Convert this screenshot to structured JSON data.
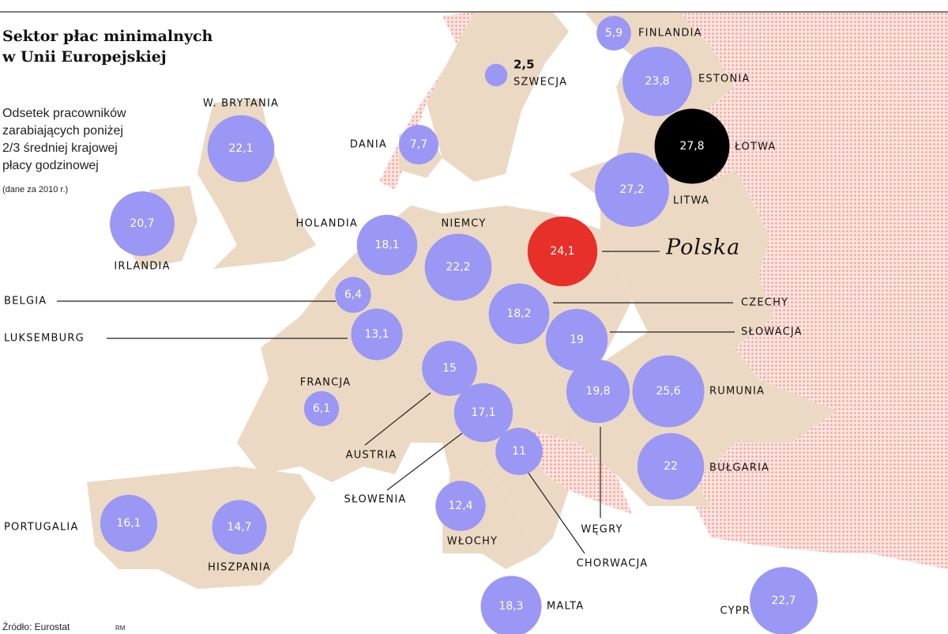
{
  "title": [
    "Sektor płac minimalnych",
    "w Unii Europejskiej"
  ],
  "subtitle": [
    "Odsetek pracowników",
    "zarabiających poniżej",
    "2/3 średniej krajowej",
    "płacy godzinowej"
  ],
  "note": "(dane za 2010 r.)",
  "source": "Źródło: Eurostat",
  "credit": "RM",
  "bubble_color": "#9b97f5",
  "countries": [
    {
      "name": "FINLANDIA",
      "value": 5.9,
      "value_label": "5,9"
    },
    {
      "name": "SZWECJA",
      "value": 2.5,
      "value_label": "2,5"
    },
    {
      "name": "ESTONIA",
      "value": 23.8,
      "value_label": "23,8"
    },
    {
      "name": "ŁOTWA",
      "value": 27.8,
      "value_label": "27,8",
      "color": "#000000"
    },
    {
      "name": "LITWA",
      "value": 27.2,
      "value_label": "27,2"
    },
    {
      "name": "W. BRYTANIA",
      "value": 22.1,
      "value_label": "22,1"
    },
    {
      "name": "DANIA",
      "value": 7.7,
      "value_label": "7,7"
    },
    {
      "name": "IRLANDIA",
      "value": 20.7,
      "value_label": "20,7"
    },
    {
      "name": "HOLANDIA",
      "value": 18.1,
      "value_label": "18,1"
    },
    {
      "name": "NIEMCY",
      "value": 22.2,
      "value_label": "22,2"
    },
    {
      "name": "Polska",
      "value": 24.1,
      "value_label": "24,1",
      "color": "#e8302a"
    },
    {
      "name": "BELGIA",
      "value": 6.4,
      "value_label": "6,4"
    },
    {
      "name": "LUKSEMBURG",
      "value": 13.1,
      "value_label": "13,1"
    },
    {
      "name": "CZECHY",
      "value": 18.2,
      "value_label": "18,2"
    },
    {
      "name": "SŁOWACJA",
      "value": 19,
      "value_label": "19"
    },
    {
      "name": "FRANCJA",
      "value": 6.1,
      "value_label": "6,1"
    },
    {
      "name": "AUSTRIA",
      "value": 15,
      "value_label": "15"
    },
    {
      "name": "SŁOWENIA",
      "value": 17.1,
      "value_label": "17,1"
    },
    {
      "name": "CHORWACJA",
      "value": 11,
      "value_label": "11"
    },
    {
      "name": "WĘGRY",
      "value": 19.8,
      "value_label": "19,8"
    },
    {
      "name": "RUMUNIA",
      "value": 25.6,
      "value_label": "25,6"
    },
    {
      "name": "BUŁGARIA",
      "value": 22,
      "value_label": "22"
    },
    {
      "name": "WŁOCHY",
      "value": 12.4,
      "value_label": "12,4"
    },
    {
      "name": "PORTUGALIA",
      "value": 16.1,
      "value_label": "16,1"
    },
    {
      "name": "HISZPANIA",
      "value": 14.7,
      "value_label": "14,7"
    },
    {
      "name": "MALTA",
      "value": 18.3,
      "value_label": "18,3"
    },
    {
      "name": "CYPR",
      "value": 22.7,
      "value_label": "22,7"
    }
  ]
}
